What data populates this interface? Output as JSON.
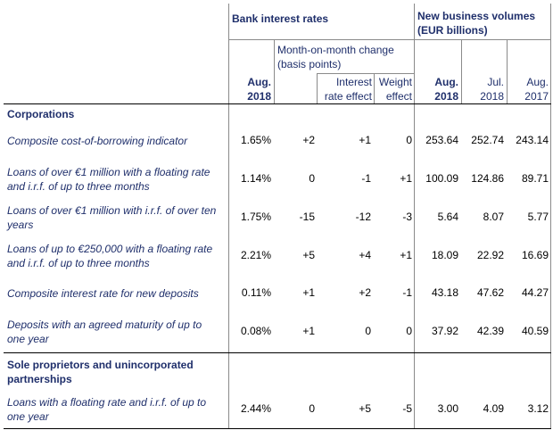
{
  "headers": {
    "bank_rates": "Bank interest rates",
    "new_business": "New business volumes (EUR billions)",
    "mom_change": "Month-on-month change (basis points)",
    "aug2018_rate": "Aug. 2018",
    "interest_effect": "Interest rate effect",
    "weight_effect": "Weight effect",
    "aug2018_vol": "Aug. 2018",
    "jul2018": "Jul. 2018",
    "aug2017": "Aug. 2017"
  },
  "sections": {
    "corporations": "Corporations",
    "sole": "Sole proprietors and unincorporated partnerships"
  },
  "rows": [
    {
      "label": "Composite cost-of-borrowing indicator",
      "rate": "1.65%",
      "mom": "+2",
      "ire": "+1",
      "we": "0",
      "aug18": "253.64",
      "jul18": "252.74",
      "aug17": "243.14"
    },
    {
      "label": "Loans of over €1 million with a floating rate and i.r.f. of up to three months",
      "rate": "1.14%",
      "mom": "0",
      "ire": "-1",
      "we": "+1",
      "aug18": "100.09",
      "jul18": "124.86",
      "aug17": "89.71"
    },
    {
      "label": "Loans of over €1 million with i.r.f. of over ten years",
      "rate": "1.75%",
      "mom": "-15",
      "ire": "-12",
      "we": "-3",
      "aug18": "5.64",
      "jul18": "8.07",
      "aug17": "5.77"
    },
    {
      "label": "Loans of up to €250,000 with a floating rate and i.r.f. of up to three months",
      "rate": "2.21%",
      "mom": "+5",
      "ire": "+4",
      "we": "+1",
      "aug18": "18.09",
      "jul18": "22.92",
      "aug17": "16.69"
    },
    {
      "label": "Composite interest rate for new deposits",
      "rate": "0.11%",
      "mom": "+1",
      "ire": "+2",
      "we": "-1",
      "aug18": "43.18",
      "jul18": "47.62",
      "aug17": "44.27"
    },
    {
      "label": "Deposits with an agreed maturity of up to one year",
      "rate": "0.08%",
      "mom": "+1",
      "ire": "0",
      "we": "0",
      "aug18": "37.92",
      "jul18": "42.39",
      "aug17": "40.59"
    },
    {
      "label": "Loans with a floating rate and i.r.f. of up to one year",
      "rate": "2.44%",
      "mom": "0",
      "ire": "+5",
      "we": "-5",
      "aug18": "3.00",
      "jul18": "4.09",
      "aug17": "3.12"
    }
  ]
}
